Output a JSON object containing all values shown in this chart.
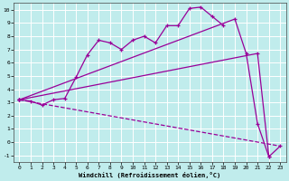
{
  "xlabel": "Windchill (Refroidissement éolien,°C)",
  "xlim": [
    -0.5,
    23.5
  ],
  "ylim": [
    -1.5,
    10.5
  ],
  "xticks": [
    0,
    1,
    2,
    3,
    4,
    5,
    6,
    7,
    8,
    9,
    10,
    11,
    12,
    13,
    14,
    15,
    16,
    17,
    18,
    19,
    20,
    21,
    22,
    23
  ],
  "yticks": [
    -1,
    0,
    1,
    2,
    3,
    4,
    5,
    6,
    7,
    8,
    9,
    10
  ],
  "background_color": "#c0ecec",
  "line_color": "#990099",
  "grid_color": "#ffffff",
  "curve1_x": [
    0,
    1,
    2,
    3,
    4,
    5,
    6,
    7,
    8,
    9,
    10,
    11,
    12,
    13,
    14,
    15,
    16,
    17,
    18
  ],
  "curve1_y": [
    3.2,
    3.1,
    2.8,
    3.2,
    3.3,
    4.9,
    6.6,
    7.7,
    7.5,
    7.0,
    7.7,
    8.0,
    7.5,
    8.8,
    8.8,
    10.1,
    10.2,
    9.5,
    8.8
  ],
  "curve2_x": [
    0,
    19,
    20,
    21,
    22,
    23
  ],
  "curve2_y": [
    3.2,
    9.3,
    6.7,
    1.4,
    -1.1,
    -0.3
  ],
  "curve3_x": [
    0,
    21,
    22
  ],
  "curve3_y": [
    3.2,
    6.7,
    -1.1
  ],
  "curve4_x": [
    0,
    23
  ],
  "curve4_y": [
    3.2,
    -0.3
  ],
  "marker_only_x": [
    0
  ],
  "marker_only_y": [
    3.2
  ]
}
